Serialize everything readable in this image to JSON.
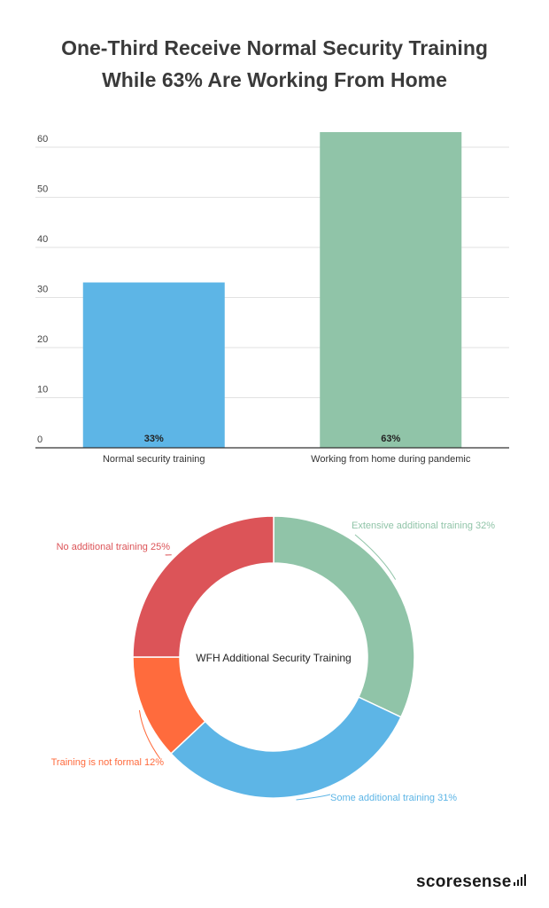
{
  "title": {
    "line1": "One-Third Receive Normal Security Training",
    "line2": "While 63% Are Working From Home"
  },
  "chart_data": [
    {
      "type": "bar",
      "categories": [
        "Normal security training",
        "Working from home during pandemic"
      ],
      "values": [
        33,
        63
      ],
      "data_labels": [
        "33%",
        "63%"
      ],
      "colors": [
        "#5DB5E6",
        "#90C4A8"
      ],
      "ylim": [
        0,
        63
      ],
      "yticks": [
        "0",
        "10",
        "20",
        "30",
        "40",
        "50",
        "60"
      ],
      "grid": true
    },
    {
      "type": "pie",
      "title": "WFH Additional Security Training",
      "slices": [
        {
          "label": "Extensive additional training 32%",
          "value": 32,
          "color": "#90C4A8"
        },
        {
          "label": "Some additional training 31%",
          "value": 31,
          "color": "#5DB5E6"
        },
        {
          "label": "Training is not formal 12%",
          "value": 12,
          "color": "#FF6B3D"
        },
        {
          "label": "No additional training 25%",
          "value": 25,
          "color": "#DC5458"
        }
      ]
    }
  ],
  "logo": {
    "text": "scoresense"
  }
}
